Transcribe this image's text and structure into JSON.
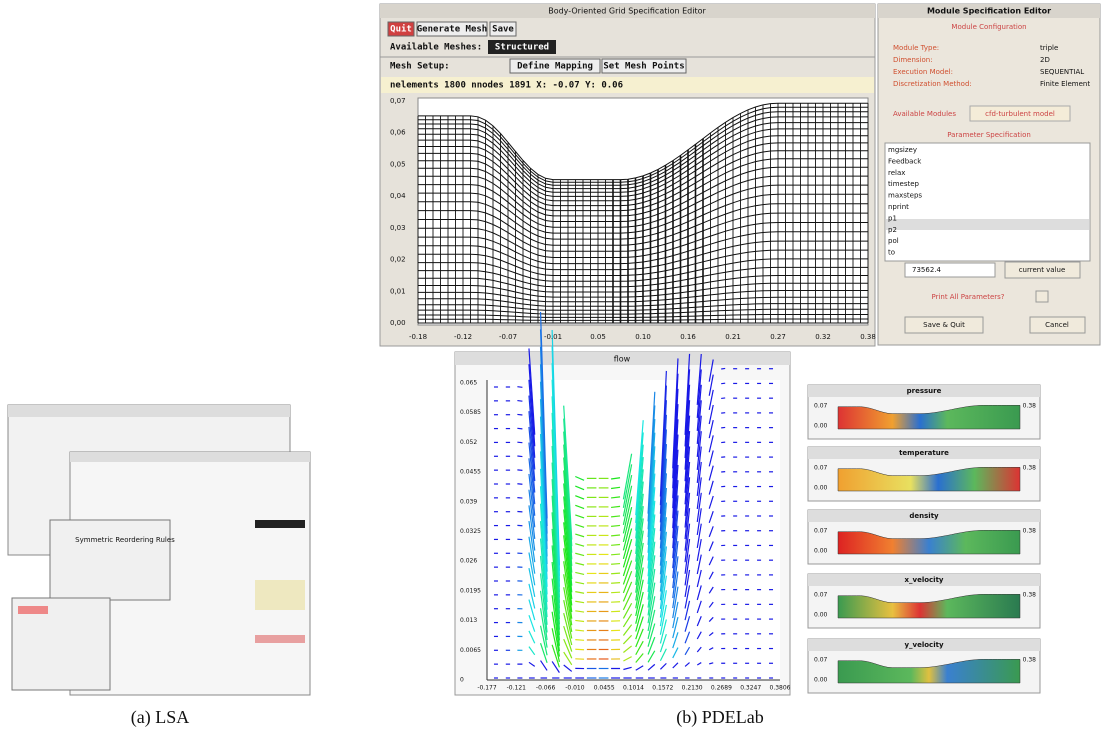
{
  "lsa": {
    "title": "Symmetric Reordering Rules",
    "caption": "(a) LSA"
  },
  "grid_editor": {
    "title": "Body-Oriented Grid Specification Editor",
    "buttons": [
      "Quit",
      "Generate Mesh",
      "Save"
    ],
    "available_meshes_label": "Available Meshes:",
    "available_meshes_value": "Structured",
    "mesh_setup_label": "Mesh Setup:",
    "mesh_buttons": [
      "Define Mapping",
      "Set Mesh Points"
    ],
    "status": "nelements 1800 nnodes 1891 X: -0.07 Y: 0.06",
    "yticks": [
      "0,07",
      "0,06",
      "0,05",
      "0,04",
      "0,03",
      "0,02",
      "0,01",
      "0,00"
    ],
    "xticks": [
      "-0.18",
      "-0.12",
      "-0.07",
      "-0.01",
      "0.05",
      "0.10",
      "0.16",
      "0.21",
      "0.27",
      "0.32",
      "0.38"
    ]
  },
  "module_editor": {
    "title": "Module Specification Editor",
    "section1": "Module Configuration",
    "fields": [
      [
        "Module Type:",
        "triple"
      ],
      [
        "Dimension:",
        "2D"
      ],
      [
        "Execution Model:",
        "SEQUENTIAL"
      ],
      [
        "Discretization Method:",
        "Finite Element"
      ]
    ],
    "available_modules_label": "Available Modules",
    "available_modules_value": "cfd-turbulent model",
    "section2": "Parameter Specification",
    "params": [
      "mgsizey",
      "Feedback",
      "relax",
      "timestep",
      "maxsteps",
      "nprint",
      "p1",
      "p2",
      "pol",
      "to"
    ],
    "value": "73562.4",
    "current_value": "current value",
    "print_all": "Print All Parameters?",
    "save_quit": "Save & Quit",
    "cancel": "Cancel"
  },
  "flow": {
    "title": "flow",
    "yticks": [
      "0.065",
      "0.0585",
      "0.052",
      "0.0455",
      "0.039",
      "0.0325",
      "0.026",
      "0.0195",
      "0.013",
      "0.0065",
      "0"
    ],
    "xticks": [
      "-0.177",
      "-0.121",
      "-0.066",
      "-0.010",
      "0.0455",
      "0.1014",
      "0.1572",
      "0.2130",
      "0.2689",
      "0.3247",
      "0.3806"
    ]
  },
  "panels": [
    {
      "title": "pressure",
      "top": "0.07",
      "bottom": "0.00",
      "right": "0.38"
    },
    {
      "title": "temperature",
      "top": "0.07",
      "bottom": "0.00",
      "right": "0.38"
    },
    {
      "title": "density",
      "top": "0.07",
      "bottom": "0.00",
      "right": "0.38"
    },
    {
      "title": "x_velocity",
      "top": "0.07",
      "bottom": "0.00",
      "right": "0.38"
    },
    {
      "title": "y_velocity",
      "top": "0.07",
      "bottom": "0.00",
      "right": "0.38"
    }
  ],
  "caption_b": "(b) PDELab"
}
